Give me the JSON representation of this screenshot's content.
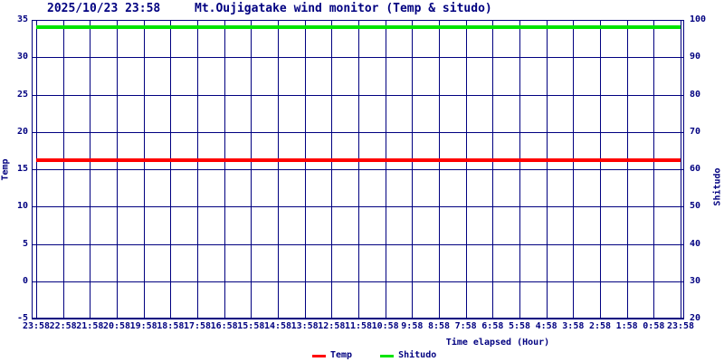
{
  "header": {
    "timestamp": "2025/10/23 23:58",
    "title": "Mt.Oujigatake wind monitor (Temp & situdo)"
  },
  "colors": {
    "axis_and_text": "#000080",
    "grid": "#000080",
    "background": "#ffffff",
    "temp_line": "#ff0000",
    "shitudo_line": "#00e400"
  },
  "chart_data": {
    "type": "line",
    "title": "Mt.Oujigatake wind monitor (Temp & situdo)",
    "timestamp": "2025/10/23 23:58",
    "xlabel": "Time elapsed (Hour)",
    "ylabel_left": "Temp",
    "ylabel_right": "Shitudo",
    "grid": true,
    "legend_position": "bottom-center",
    "x_ticks": [
      "23:58",
      "22:58",
      "21:58",
      "20:58",
      "19:58",
      "18:58",
      "17:58",
      "16:58",
      "15:58",
      "14:58",
      "13:58",
      "12:58",
      "11:58",
      "10:58",
      "9:58",
      "8:58",
      "7:58",
      "6:58",
      "5:58",
      "4:58",
      "3:58",
      "2:58",
      "1:58",
      "0:58",
      "23:58"
    ],
    "y_left_ticks": [
      35,
      30,
      25,
      20,
      15,
      10,
      5,
      0,
      -5
    ],
    "y_right_ticks": [
      100,
      90,
      80,
      70,
      60,
      50,
      40,
      30,
      20
    ],
    "y_left_range": [
      -5,
      35
    ],
    "y_right_range": [
      20,
      100
    ],
    "series": [
      {
        "name": "Temp",
        "axis": "left",
        "color": "#ff0000",
        "constant_value": 16.2,
        "shape": "flat-line-across-full-x-range"
      },
      {
        "name": "Shitudo",
        "axis": "right",
        "color": "#00e400",
        "constant_value": 98,
        "shape": "flat-line-across-full-x-range"
      }
    ],
    "legend": [
      {
        "label": "Temp",
        "color": "#ff0000"
      },
      {
        "label": "Shitudo",
        "color": "#00e400"
      }
    ]
  }
}
